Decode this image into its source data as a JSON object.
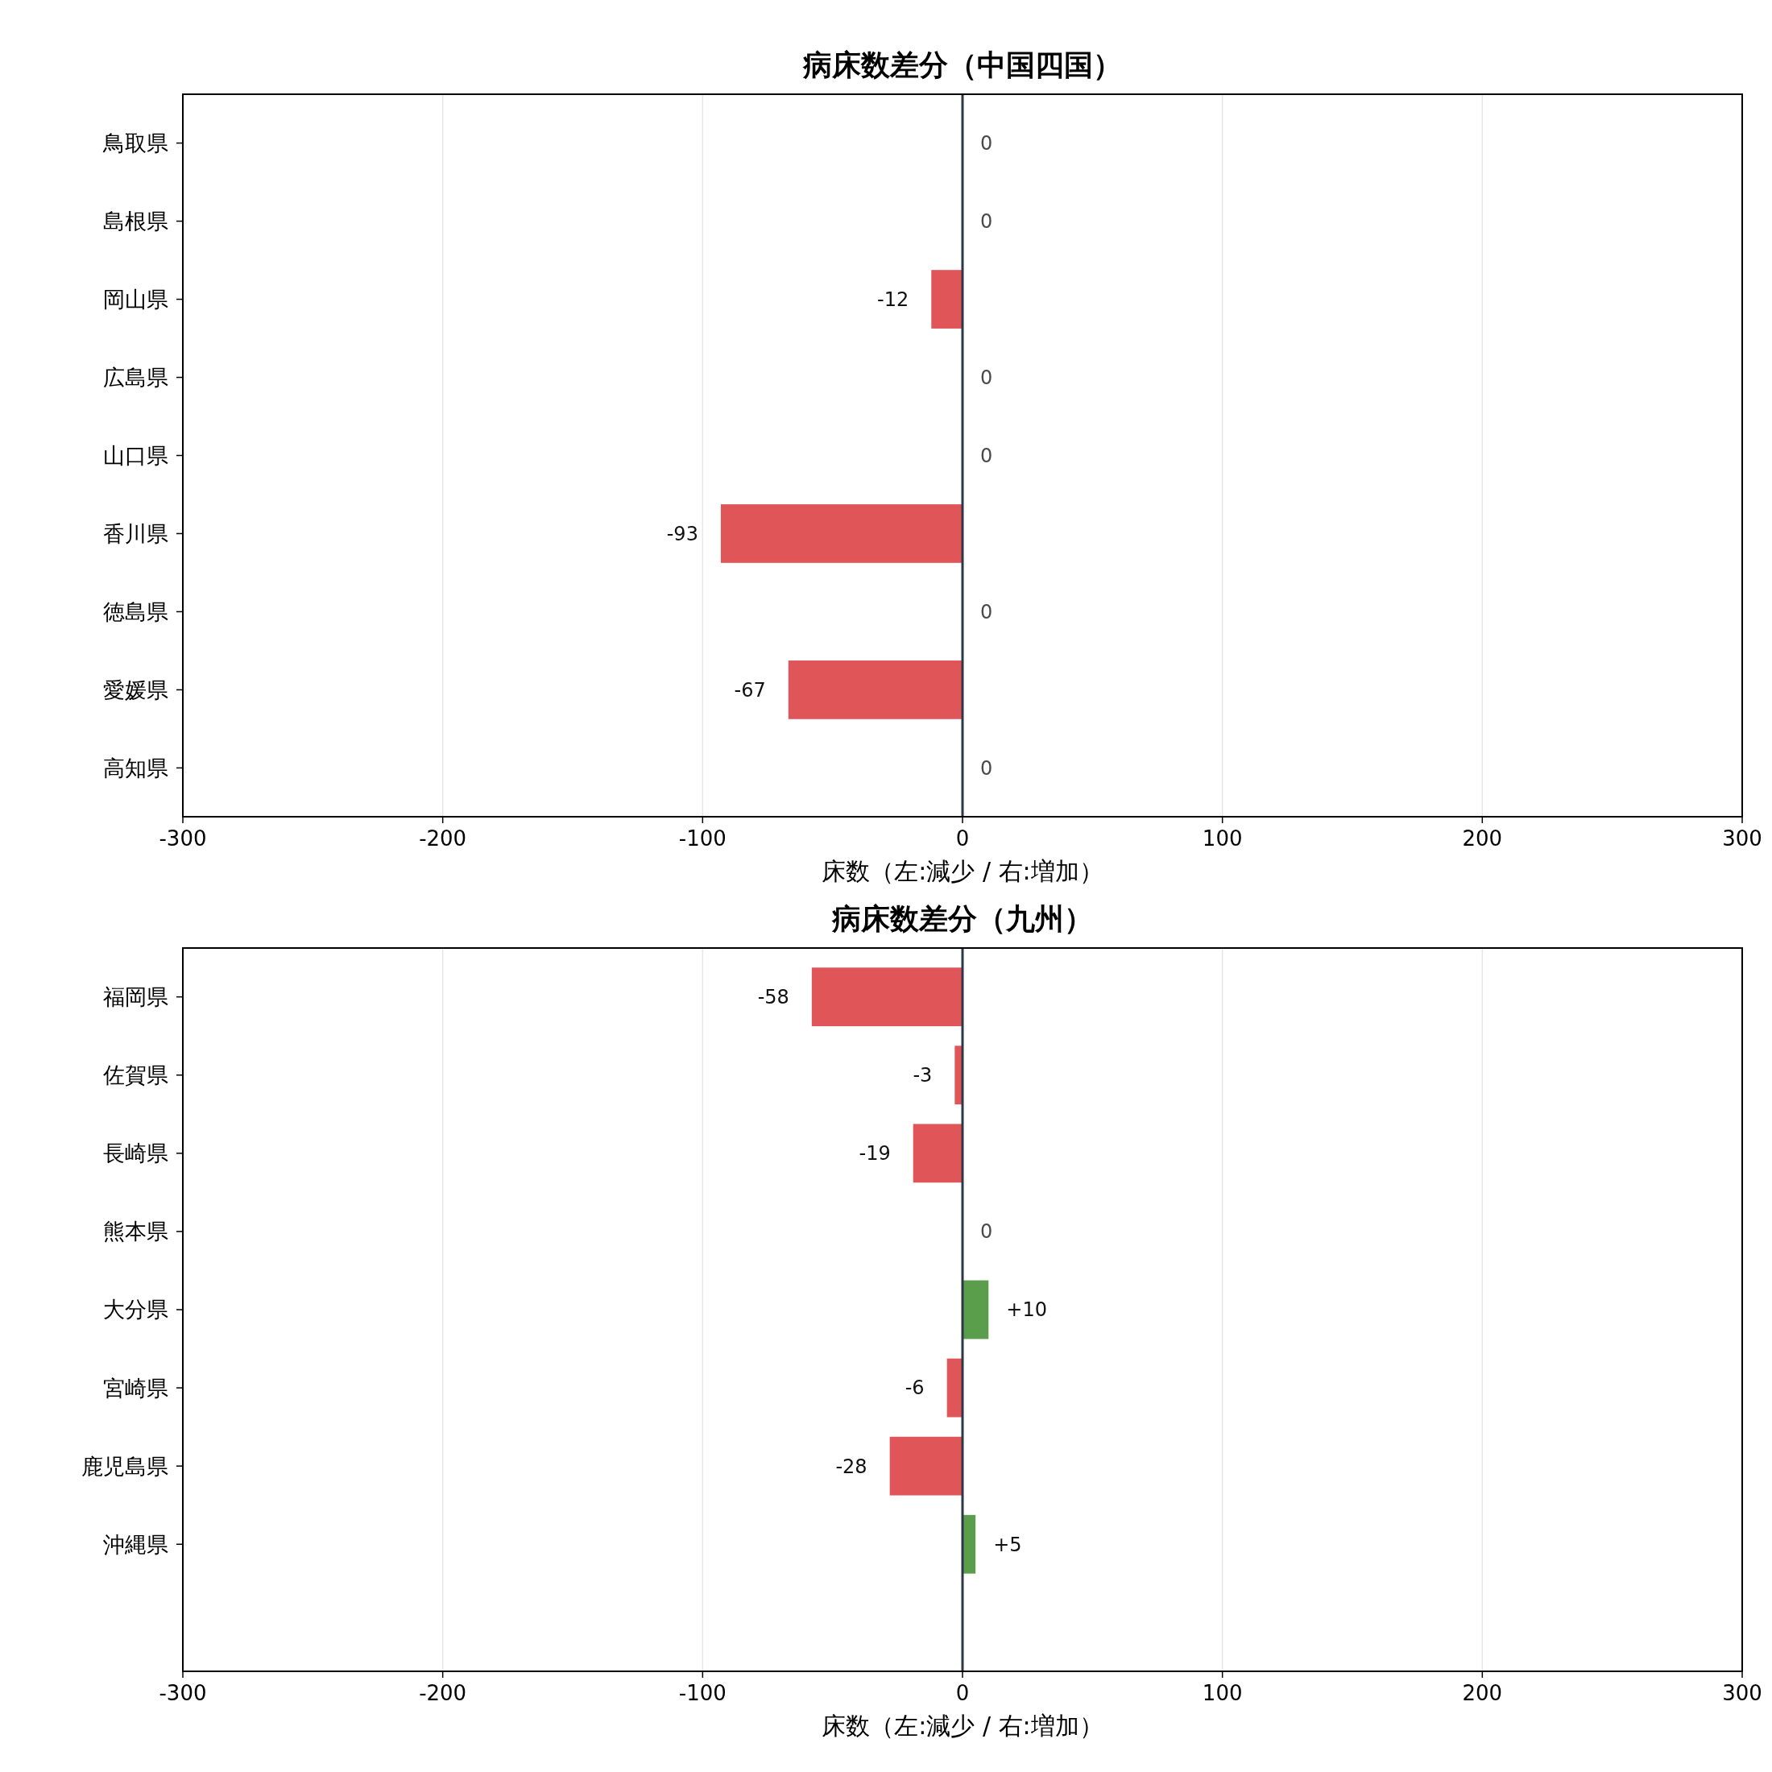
{
  "chart_data": [
    {
      "type": "bar",
      "orientation": "horizontal",
      "title": "病床数差分（中国四国）",
      "xlabel": "床数（左:減少 / 右:増加）",
      "categories": [
        "鳥取県",
        "島根県",
        "岡山県",
        "広島県",
        "山口県",
        "香川県",
        "徳島県",
        "愛媛県",
        "高知県"
      ],
      "values": [
        0,
        0,
        -12,
        0,
        0,
        -93,
        0,
        -67,
        0
      ],
      "colors": [
        "#e05558",
        "#e05558",
        "#e05558",
        "#e05558",
        "#e05558",
        "#e05558",
        "#e05558",
        "#e05558",
        "#e05558"
      ],
      "value_labels": [
        "0",
        "0",
        "-12",
        "0",
        "0",
        "-93",
        "0",
        "-67",
        "0"
      ],
      "xlim": [
        -300,
        300
      ],
      "xticks": [
        -300,
        -200,
        -100,
        0,
        100,
        200,
        300
      ],
      "grid": "x",
      "ref_lines": [
        {
          "axis": "x",
          "value": 0,
          "color": "#2d3748"
        }
      ]
    },
    {
      "type": "bar",
      "orientation": "horizontal",
      "title": "病床数差分（九州）",
      "xlabel": "床数（左:減少 / 右:増加）",
      "categories": [
        "福岡県",
        "佐賀県",
        "長崎県",
        "熊本県",
        "大分県",
        "宮崎県",
        "鹿児島県",
        "沖縄県",
        null
      ],
      "values": [
        -58,
        -3,
        -19,
        0,
        10,
        -6,
        -28,
        5,
        null
      ],
      "colors": [
        "#e05558",
        "#e05558",
        "#e05558",
        "#e05558",
        "#5a9e4b",
        "#e05558",
        "#e05558",
        "#5a9e4b",
        null
      ],
      "value_labels": [
        "-58",
        "-3",
        "-19",
        "0",
        "+10",
        "-6",
        "-28",
        "+5",
        null
      ],
      "xlim": [
        -300,
        300
      ],
      "xticks": [
        -300,
        -200,
        -100,
        0,
        100,
        200,
        300
      ],
      "grid": "x",
      "ref_lines": [
        {
          "axis": "x",
          "value": 0,
          "color": "#2d3748"
        }
      ]
    }
  ]
}
